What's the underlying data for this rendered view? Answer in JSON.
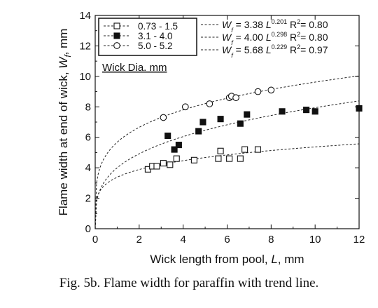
{
  "caption": "Fig. 5b.  Flame width for paraffin with trend line.",
  "chart_data": {
    "type": "scatter",
    "title": "",
    "xlabel_parts": [
      "Wick length from pool, ",
      "L",
      ", mm"
    ],
    "ylabel_parts": [
      "Flame width at end of wick, ",
      "W",
      "f",
      ", mm"
    ],
    "xlim": [
      0,
      12
    ],
    "ylim": [
      0,
      14
    ],
    "xticks": [
      0,
      2,
      4,
      6,
      8,
      10,
      12
    ],
    "yticks": [
      0,
      2,
      4,
      6,
      8,
      10,
      12,
      14
    ],
    "grid": false,
    "legend_title": "Wick Dia. mm",
    "legend_position": "top-left",
    "series": [
      {
        "name": "0.73 - 1.5",
        "marker": "open-square",
        "color": "#111111",
        "points": [
          [
            2.4,
            3.9
          ],
          [
            2.6,
            4.1
          ],
          [
            2.8,
            4.1
          ],
          [
            3.1,
            4.3
          ],
          [
            3.4,
            4.2
          ],
          [
            3.7,
            4.6
          ],
          [
            4.5,
            4.5
          ],
          [
            5.6,
            4.6
          ],
          [
            5.7,
            5.1
          ],
          [
            6.1,
            4.6
          ],
          [
            6.6,
            4.6
          ],
          [
            6.8,
            5.2
          ],
          [
            7.4,
            5.2
          ]
        ],
        "fit": {
          "a": 3.38,
          "b": 0.201,
          "r2": "0.80",
          "label_coef": "3.38",
          "label_exp": "0.201"
        }
      },
      {
        "name": "3.1 - 4.0",
        "marker": "filled-square",
        "color": "#111111",
        "points": [
          [
            3.3,
            6.1
          ],
          [
            3.6,
            5.2
          ],
          [
            3.8,
            5.5
          ],
          [
            4.7,
            6.4
          ],
          [
            4.9,
            7.0
          ],
          [
            5.7,
            7.2
          ],
          [
            6.6,
            6.9
          ],
          [
            6.9,
            7.5
          ],
          [
            8.5,
            7.7
          ],
          [
            9.6,
            7.8
          ],
          [
            10.0,
            7.7
          ],
          [
            12.0,
            7.9
          ]
        ],
        "fit": {
          "a": 4.0,
          "b": 0.298,
          "r2": "0.80",
          "label_coef": "4.00",
          "label_exp": "0.298"
        }
      },
      {
        "name": "5.0 - 5.2",
        "marker": "open-circle",
        "color": "#111111",
        "points": [
          [
            3.1,
            7.3
          ],
          [
            4.1,
            8.0
          ],
          [
            5.2,
            8.2
          ],
          [
            6.1,
            8.6
          ],
          [
            6.2,
            8.7
          ],
          [
            6.4,
            8.6
          ],
          [
            7.4,
            9.0
          ],
          [
            8.0,
            9.1
          ]
        ],
        "fit": {
          "a": 5.68,
          "b": 0.229,
          "r2": "0.97",
          "label_coef": "5.68",
          "label_exp": "0.229"
        }
      }
    ]
  }
}
